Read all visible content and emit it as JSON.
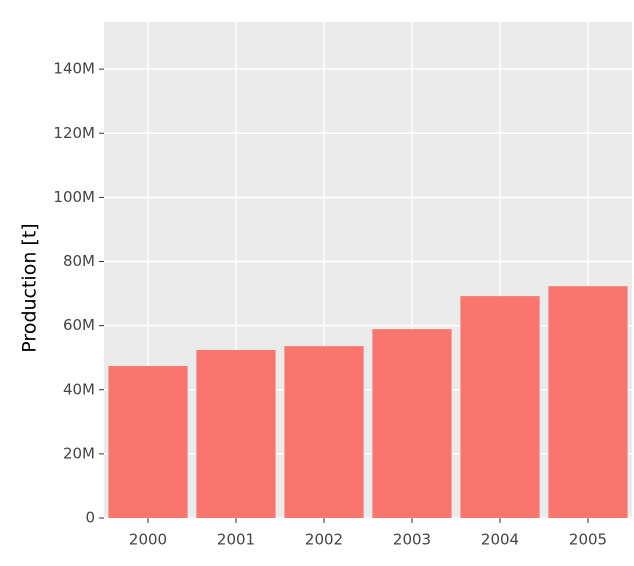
{
  "chart_data": {
    "type": "bar",
    "y_label": "Production [t]",
    "categories": [
      "2000",
      "2001",
      "2002",
      "2003",
      "2004",
      "2005"
    ],
    "values": [
      47400000,
      52400000,
      53600000,
      58900000,
      69200000,
      72300000
    ],
    "color": "#F8766D",
    "ylim": [
      0,
      154700000
    ],
    "yticks": [
      0,
      {
        "value": 20000000,
        "label": "20M"
      },
      {
        "value": 40000000,
        "label": "40M"
      },
      {
        "value": 60000000,
        "label": "60M"
      },
      {
        "value": 80000000,
        "label": "80M"
      },
      {
        "value": 100000000,
        "label": "100M"
      },
      {
        "value": 120000000,
        "label": "120M"
      },
      {
        "value": 140000000,
        "label": "140M"
      }
    ],
    "grid": true
  }
}
